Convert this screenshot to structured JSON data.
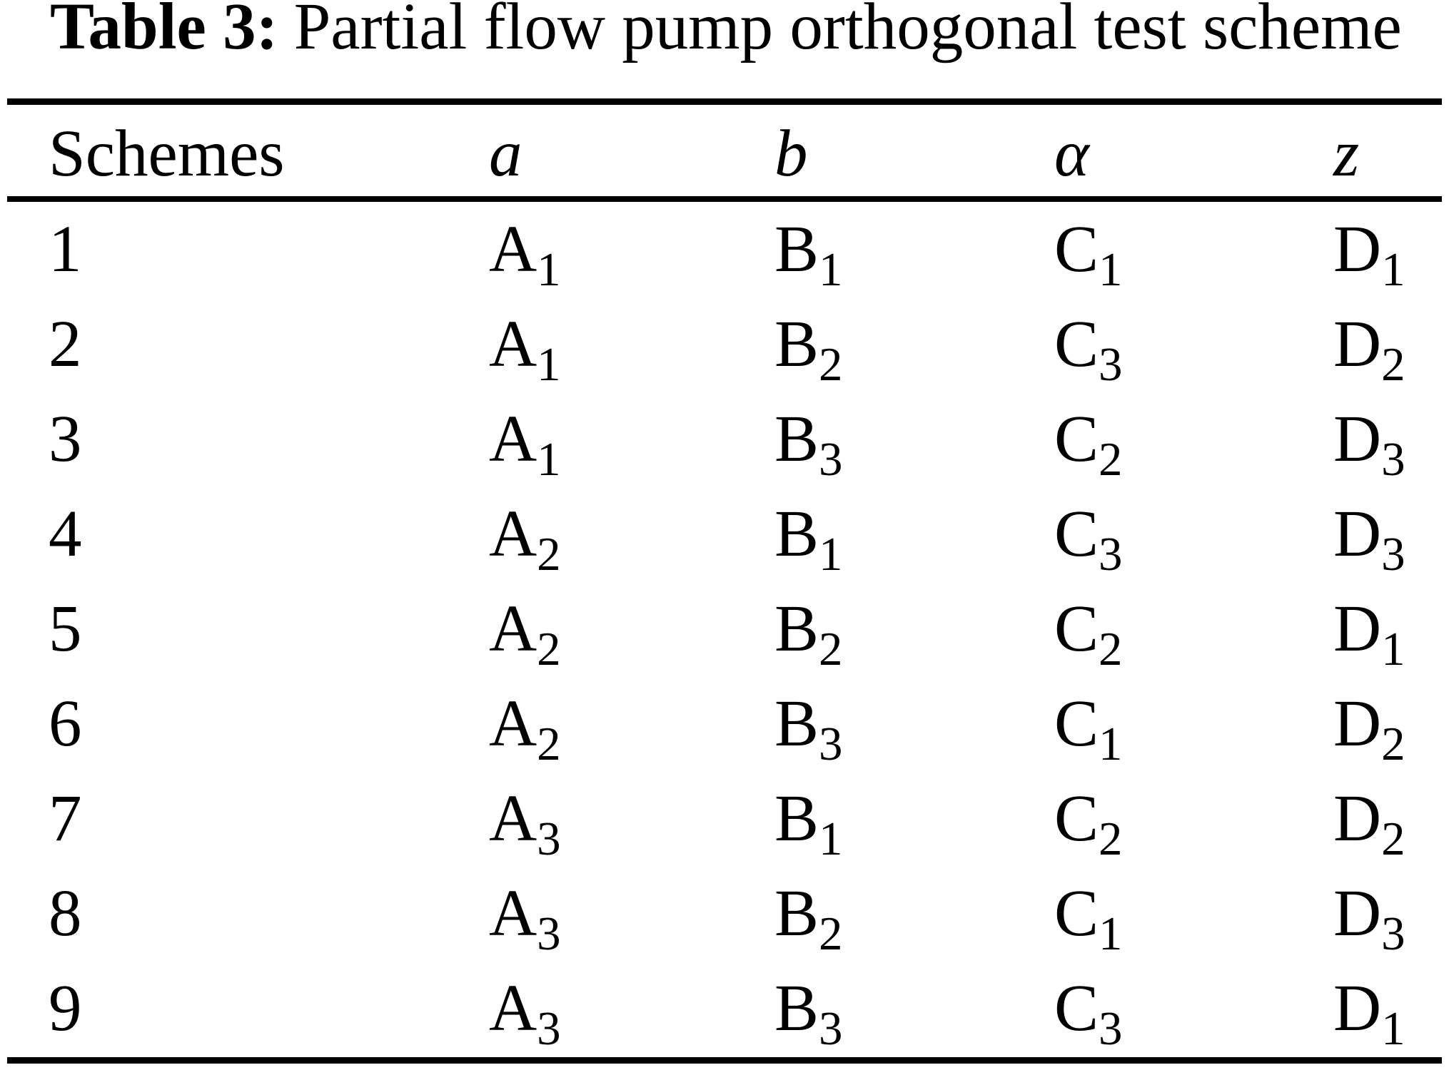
{
  "caption": {
    "label": "Table 3:",
    "text": "Partial flow pump orthogonal test scheme"
  },
  "table": {
    "columns": [
      "Schemes",
      "a",
      "b",
      "α",
      "z"
    ],
    "rows": [
      [
        {
          "base": "1"
        },
        {
          "base": "A",
          "sub": "1"
        },
        {
          "base": "B",
          "sub": "1"
        },
        {
          "base": "C",
          "sub": "1"
        },
        {
          "base": "D",
          "sub": "1"
        }
      ],
      [
        {
          "base": "2"
        },
        {
          "base": "A",
          "sub": "1"
        },
        {
          "base": "B",
          "sub": "2"
        },
        {
          "base": "C",
          "sub": "3"
        },
        {
          "base": "D",
          "sub": "2"
        }
      ],
      [
        {
          "base": "3"
        },
        {
          "base": "A",
          "sub": "1"
        },
        {
          "base": "B",
          "sub": "3"
        },
        {
          "base": "C",
          "sub": "2"
        },
        {
          "base": "D",
          "sub": "3"
        }
      ],
      [
        {
          "base": "4"
        },
        {
          "base": "A",
          "sub": "2"
        },
        {
          "base": "B",
          "sub": "1"
        },
        {
          "base": "C",
          "sub": "3"
        },
        {
          "base": "D",
          "sub": "3"
        }
      ],
      [
        {
          "base": "5"
        },
        {
          "base": "A",
          "sub": "2"
        },
        {
          "base": "B",
          "sub": "2"
        },
        {
          "base": "C",
          "sub": "2"
        },
        {
          "base": "D",
          "sub": "1"
        }
      ],
      [
        {
          "base": "6"
        },
        {
          "base": "A",
          "sub": "2"
        },
        {
          "base": "B",
          "sub": "3"
        },
        {
          "base": "C",
          "sub": "1"
        },
        {
          "base": "D",
          "sub": "2"
        }
      ],
      [
        {
          "base": "7"
        },
        {
          "base": "A",
          "sub": "3"
        },
        {
          "base": "B",
          "sub": "1"
        },
        {
          "base": "C",
          "sub": "2"
        },
        {
          "base": "D",
          "sub": "2"
        }
      ],
      [
        {
          "base": "8"
        },
        {
          "base": "A",
          "sub": "3"
        },
        {
          "base": "B",
          "sub": "2"
        },
        {
          "base": "C",
          "sub": "1"
        },
        {
          "base": "D",
          "sub": "3"
        }
      ],
      [
        {
          "base": "9"
        },
        {
          "base": "A",
          "sub": "3"
        },
        {
          "base": "B",
          "sub": "3"
        },
        {
          "base": "C",
          "sub": "3"
        },
        {
          "base": "D",
          "sub": "1"
        }
      ]
    ]
  },
  "colors": {
    "text": "#000000",
    "background": "#ffffff",
    "rule": "#000000"
  }
}
